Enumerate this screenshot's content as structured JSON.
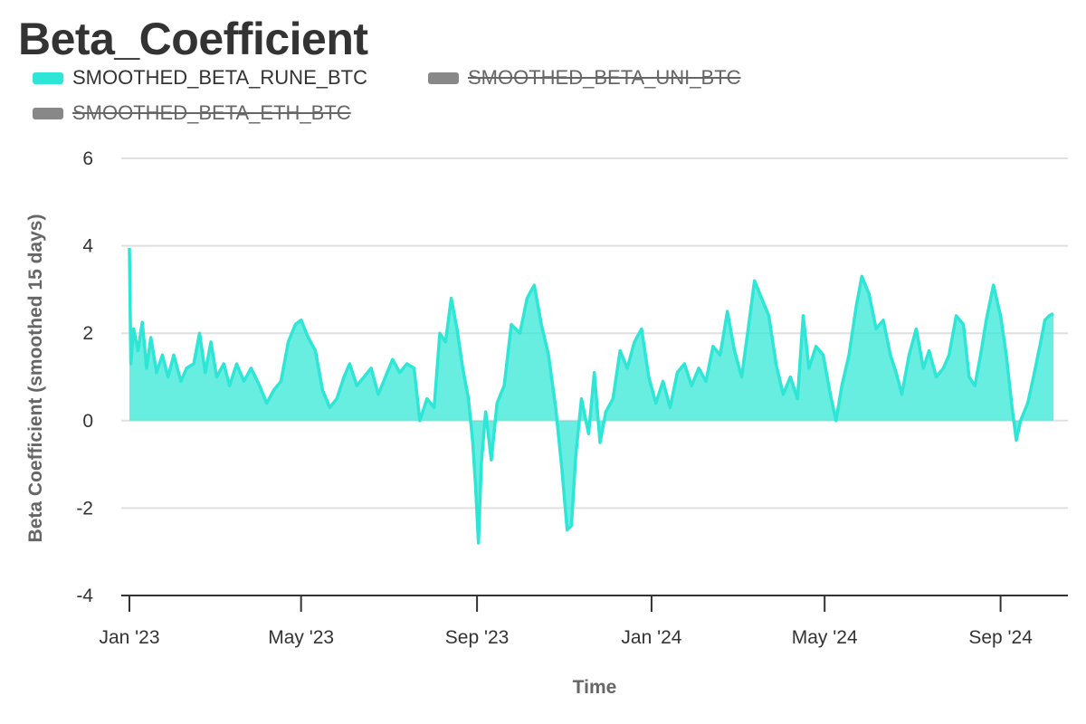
{
  "title": "Beta_Coefficient",
  "colors": {
    "accent": "#2ee6d6",
    "area": "#2ee6d6",
    "hidden": "#888888",
    "grid": "#e0e0e0",
    "axis": "#333333"
  },
  "legend": [
    {
      "label": "SMOOTHED_BETA_RUNE_BTC",
      "visible": true
    },
    {
      "label": "SMOOTHED_BETA_UNI_BTC",
      "visible": false
    },
    {
      "label": "SMOOTHED_BETA_ETH_BTC",
      "visible": false
    }
  ],
  "chart_data": {
    "type": "area",
    "title": "Beta_Coefficient",
    "xlabel": "Time",
    "ylabel": "Beta Coefficient (smoothed 15 days)",
    "ylim": [
      -4,
      6
    ],
    "yticks": [
      6,
      4,
      2,
      0,
      -2,
      -4
    ],
    "xlim": [
      "2023-01-01",
      "2024-10-13"
    ],
    "xticks": [
      {
        "label": "Jan '23",
        "date": "2023-01-01"
      },
      {
        "label": "May '23",
        "date": "2023-05-01"
      },
      {
        "label": "Sep '23",
        "date": "2023-09-01"
      },
      {
        "label": "Jan '24",
        "date": "2024-01-01"
      },
      {
        "label": "May '24",
        "date": "2024-05-01"
      },
      {
        "label": "Sep '24",
        "date": "2024-09-01"
      }
    ],
    "grid": true,
    "legend_position": "top-left",
    "series": [
      {
        "name": "SMOOTHED_BETA_RUNE_BTC",
        "visible": true,
        "points": [
          [
            "2023-01-01",
            3.95
          ],
          [
            "2023-01-02",
            1.3
          ],
          [
            "2023-01-04",
            2.1
          ],
          [
            "2023-01-07",
            1.6
          ],
          [
            "2023-01-10",
            2.25
          ],
          [
            "2023-01-13",
            1.2
          ],
          [
            "2023-01-16",
            1.9
          ],
          [
            "2023-01-20",
            1.1
          ],
          [
            "2023-01-24",
            1.5
          ],
          [
            "2023-01-28",
            1.0
          ],
          [
            "2023-02-01",
            1.5
          ],
          [
            "2023-02-06",
            0.9
          ],
          [
            "2023-02-10",
            1.2
          ],
          [
            "2023-02-15",
            1.3
          ],
          [
            "2023-02-19",
            2.0
          ],
          [
            "2023-02-23",
            1.1
          ],
          [
            "2023-02-27",
            1.8
          ],
          [
            "2023-03-03",
            1.0
          ],
          [
            "2023-03-08",
            1.3
          ],
          [
            "2023-03-12",
            0.8
          ],
          [
            "2023-03-17",
            1.3
          ],
          [
            "2023-03-22",
            0.9
          ],
          [
            "2023-03-27",
            1.2
          ],
          [
            "2023-04-02",
            0.8
          ],
          [
            "2023-04-07",
            0.4
          ],
          [
            "2023-04-12",
            0.7
          ],
          [
            "2023-04-17",
            0.9
          ],
          [
            "2023-04-22",
            1.8
          ],
          [
            "2023-04-27",
            2.2
          ],
          [
            "2023-05-01",
            2.3
          ],
          [
            "2023-05-06",
            1.9
          ],
          [
            "2023-05-11",
            1.6
          ],
          [
            "2023-05-16",
            0.7
          ],
          [
            "2023-05-21",
            0.3
          ],
          [
            "2023-05-26",
            0.5
          ],
          [
            "2023-05-31",
            1.0
          ],
          [
            "2023-06-04",
            1.3
          ],
          [
            "2023-06-09",
            0.8
          ],
          [
            "2023-06-14",
            1.0
          ],
          [
            "2023-06-19",
            1.2
          ],
          [
            "2023-06-24",
            0.6
          ],
          [
            "2023-06-29",
            1.0
          ],
          [
            "2023-07-04",
            1.4
          ],
          [
            "2023-07-09",
            1.1
          ],
          [
            "2023-07-14",
            1.3
          ],
          [
            "2023-07-19",
            1.2
          ],
          [
            "2023-07-23",
            0.0
          ],
          [
            "2023-07-28",
            0.5
          ],
          [
            "2023-08-02",
            0.3
          ],
          [
            "2023-08-06",
            2.0
          ],
          [
            "2023-08-10",
            1.8
          ],
          [
            "2023-08-14",
            2.8
          ],
          [
            "2023-08-18",
            2.1
          ],
          [
            "2023-08-22",
            1.2
          ],
          [
            "2023-08-26",
            0.5
          ],
          [
            "2023-08-29",
            -0.5
          ],
          [
            "2023-08-31",
            -1.5
          ],
          [
            "2023-09-02",
            -2.8
          ],
          [
            "2023-09-04",
            -1.0
          ],
          [
            "2023-09-07",
            0.2
          ],
          [
            "2023-09-11",
            -0.9
          ],
          [
            "2023-09-15",
            0.4
          ],
          [
            "2023-09-20",
            0.8
          ],
          [
            "2023-09-25",
            2.2
          ],
          [
            "2023-10-01",
            2.0
          ],
          [
            "2023-10-06",
            2.8
          ],
          [
            "2023-10-11",
            3.1
          ],
          [
            "2023-10-16",
            2.2
          ],
          [
            "2023-10-21",
            1.5
          ],
          [
            "2023-10-26",
            0.3
          ],
          [
            "2023-10-30",
            -1.0
          ],
          [
            "2023-11-03",
            -2.5
          ],
          [
            "2023-11-06",
            -2.4
          ],
          [
            "2023-11-09",
            -0.8
          ],
          [
            "2023-11-13",
            0.5
          ],
          [
            "2023-11-18",
            -0.3
          ],
          [
            "2023-11-22",
            1.1
          ],
          [
            "2023-11-26",
            -0.5
          ],
          [
            "2023-11-30",
            0.2
          ],
          [
            "2023-12-05",
            0.5
          ],
          [
            "2023-12-10",
            1.6
          ],
          [
            "2023-12-15",
            1.2
          ],
          [
            "2023-12-20",
            1.8
          ],
          [
            "2023-12-25",
            2.1
          ],
          [
            "2023-12-30",
            1.0
          ],
          [
            "2024-01-04",
            0.4
          ],
          [
            "2024-01-09",
            0.9
          ],
          [
            "2024-01-14",
            0.3
          ],
          [
            "2024-01-19",
            1.1
          ],
          [
            "2024-01-24",
            1.3
          ],
          [
            "2024-01-29",
            0.8
          ],
          [
            "2024-02-03",
            1.2
          ],
          [
            "2024-02-08",
            0.9
          ],
          [
            "2024-02-13",
            1.7
          ],
          [
            "2024-02-18",
            1.5
          ],
          [
            "2024-02-23",
            2.5
          ],
          [
            "2024-02-28",
            1.6
          ],
          [
            "2024-03-04",
            1.0
          ],
          [
            "2024-03-09",
            2.2
          ],
          [
            "2024-03-13",
            3.2
          ],
          [
            "2024-03-18",
            2.8
          ],
          [
            "2024-03-23",
            2.4
          ],
          [
            "2024-03-28",
            1.3
          ],
          [
            "2024-04-02",
            0.6
          ],
          [
            "2024-04-07",
            1.0
          ],
          [
            "2024-04-12",
            0.5
          ],
          [
            "2024-04-16",
            2.4
          ],
          [
            "2024-04-20",
            1.2
          ],
          [
            "2024-04-25",
            1.7
          ],
          [
            "2024-04-30",
            1.5
          ],
          [
            "2024-05-05",
            0.6
          ],
          [
            "2024-05-09",
            0.0
          ],
          [
            "2024-05-13",
            0.8
          ],
          [
            "2024-05-18",
            1.5
          ],
          [
            "2024-05-23",
            2.6
          ],
          [
            "2024-05-27",
            3.3
          ],
          [
            "2024-06-01",
            2.9
          ],
          [
            "2024-06-06",
            2.1
          ],
          [
            "2024-06-11",
            2.3
          ],
          [
            "2024-06-16",
            1.5
          ],
          [
            "2024-06-20",
            1.1
          ],
          [
            "2024-06-24",
            0.6
          ],
          [
            "2024-06-29",
            1.5
          ],
          [
            "2024-07-04",
            2.1
          ],
          [
            "2024-07-09",
            1.2
          ],
          [
            "2024-07-13",
            1.6
          ],
          [
            "2024-07-18",
            1.0
          ],
          [
            "2024-07-23",
            1.2
          ],
          [
            "2024-07-27",
            1.5
          ],
          [
            "2024-08-01",
            2.4
          ],
          [
            "2024-08-06",
            2.2
          ],
          [
            "2024-08-10",
            1.0
          ],
          [
            "2024-08-14",
            0.8
          ],
          [
            "2024-08-18",
            1.5
          ],
          [
            "2024-08-22",
            2.3
          ],
          [
            "2024-08-27",
            3.1
          ],
          [
            "2024-09-01",
            2.4
          ],
          [
            "2024-09-05",
            1.5
          ],
          [
            "2024-09-09",
            0.3
          ],
          [
            "2024-09-12",
            -0.45
          ],
          [
            "2024-09-15",
            0.0
          ],
          [
            "2024-09-20",
            0.4
          ],
          [
            "2024-09-24",
            1.0
          ],
          [
            "2024-09-29",
            1.8
          ],
          [
            "2024-10-02",
            2.3
          ],
          [
            "2024-10-05",
            2.4
          ],
          [
            "2024-10-08",
            2.45
          ]
        ]
      },
      {
        "name": "SMOOTHED_BETA_UNI_BTC",
        "visible": false,
        "points": []
      },
      {
        "name": "SMOOTHED_BETA_ETH_BTC",
        "visible": false,
        "points": []
      }
    ]
  }
}
